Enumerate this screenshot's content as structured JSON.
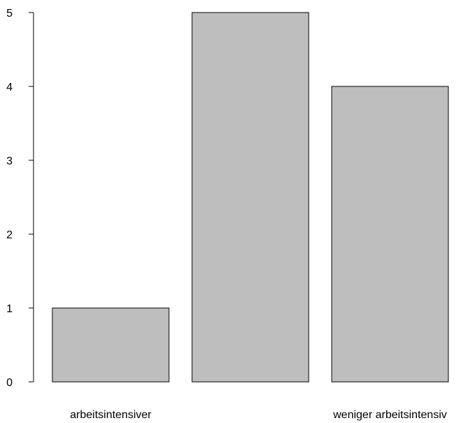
{
  "chart_data": {
    "type": "bar",
    "categories": [
      "arbeitsintensiver",
      "",
      "weniger arbeitsintensiv"
    ],
    "values": [
      1,
      5,
      4
    ],
    "title": "",
    "xlabel": "",
    "ylabel": "",
    "ylim": [
      0,
      5
    ],
    "yticks": [
      "0",
      "1",
      "2",
      "3",
      "4",
      "5"
    ],
    "bar_color": "#bebebe",
    "bar_border_color": "#000000",
    "grid": false,
    "legend": "none"
  }
}
